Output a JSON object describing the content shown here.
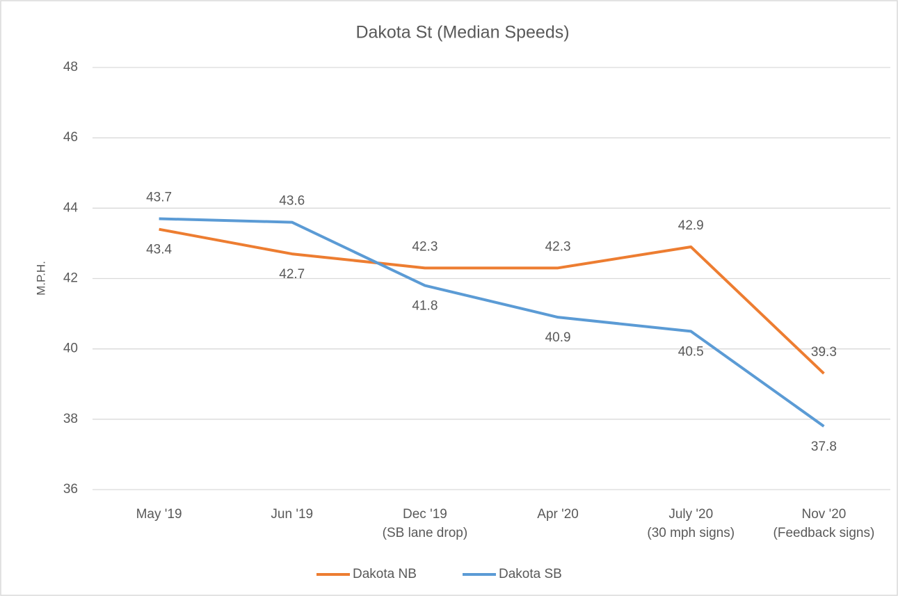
{
  "chart_data": {
    "type": "line",
    "title": "Dakota St (Median Speeds)",
    "y_label": "M.P.H.",
    "categories": [
      "May '19",
      "Jun '19",
      "Dec '19\n(SB lane drop)",
      "Apr '20",
      "July '20\n(30 mph signs)",
      "Nov '20\n(Feedback signs)"
    ],
    "series": [
      {
        "name": "Dakota NB",
        "color": "#ed7d31",
        "values": [
          43.4,
          42.7,
          42.3,
          42.3,
          42.9,
          39.3
        ]
      },
      {
        "name": "Dakota SB",
        "color": "#5b9bd5",
        "values": [
          43.7,
          43.6,
          41.8,
          40.9,
          40.5,
          37.8
        ]
      }
    ],
    "ylim": [
      36,
      48
    ],
    "yticks": [
      36,
      38,
      40,
      42,
      44,
      46,
      48
    ],
    "grid": true,
    "legend": "bottom"
  }
}
